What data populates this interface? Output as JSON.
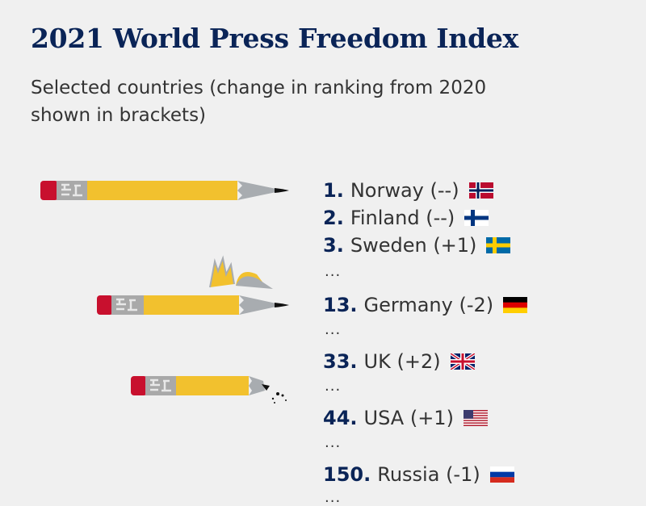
{
  "title": "2021 World Press Freedom Index",
  "subtitle": "Selected countries (change in ranking from 2020 shown in brackets)",
  "ellipsis": "...",
  "chart_data": {
    "type": "table",
    "title": "2021 World Press Freedom Index",
    "subtitle": "Selected countries (change in ranking from 2020 shown in brackets)",
    "columns": [
      "rank",
      "country",
      "change"
    ],
    "rows": [
      {
        "rank": "1.",
        "country": "Norway",
        "change": "(--)",
        "flag": "norway-flag"
      },
      {
        "rank": "2.",
        "country": "Finland",
        "change": "(--)",
        "flag": "finland-flag"
      },
      {
        "rank": "3.",
        "country": "Sweden",
        "change": "(+1)",
        "flag": "sweden-flag"
      },
      {
        "rank": "13.",
        "country": "Germany",
        "change": "(-2)",
        "flag": "germany-flag"
      },
      {
        "rank": "33.",
        "country": "UK",
        "change": "(+2)",
        "flag": "uk-flag"
      },
      {
        "rank": "44.",
        "country": "USA",
        "change": "(+1)",
        "flag": "usa-flag"
      },
      {
        "rank": "150.",
        "country": "Russia",
        "change": "(-1)",
        "flag": "russia-flag"
      }
    ],
    "pencil_illustrations": [
      "full-pencil-icon",
      "broken-pencil-icon",
      "blunt-pencil-icon"
    ]
  }
}
